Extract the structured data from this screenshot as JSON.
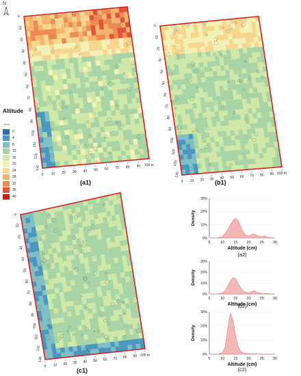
{
  "north_label": "N",
  "legend": {
    "title": "Altitude",
    "unit": "(cm)",
    "items": [
      {
        "value": "0",
        "color": "#2a6ea8"
      },
      {
        "value": "4",
        "color": "#4c97c0"
      },
      {
        "value": "8",
        "color": "#7fbfc4"
      },
      {
        "value": "12",
        "color": "#a9d5a6"
      },
      {
        "value": "16",
        "color": "#cfe7a7"
      },
      {
        "value": "20",
        "color": "#f2f2b6"
      },
      {
        "value": "24",
        "color": "#f7d78f"
      },
      {
        "value": "28",
        "color": "#f4b36e"
      },
      {
        "value": "32",
        "color": "#ec8b52"
      },
      {
        "value": "36",
        "color": "#e0553a"
      },
      {
        "value": "40",
        "color": "#c91d1d"
      }
    ]
  },
  "maps": [
    {
      "id": "a1",
      "label": "(a1)",
      "x_ticks": [
        "0",
        "10",
        "20",
        "30",
        "40",
        "50",
        "60",
        "70",
        "80",
        "90",
        "100 m"
      ],
      "y_ticks": [
        "0",
        "10",
        "20",
        "30",
        "40",
        "50",
        "60",
        "70",
        "80",
        "90",
        "100",
        "110",
        "120",
        "130"
      ],
      "x_unit": "m"
    },
    {
      "id": "b1",
      "label": "(b1)",
      "x_ticks": [
        "0",
        "10",
        "20",
        "30",
        "40",
        "50",
        "60",
        "70",
        "80",
        "90",
        "100 m"
      ],
      "y_ticks": [
        "0",
        "10",
        "20",
        "30",
        "40",
        "50",
        "60",
        "70",
        "80",
        "90",
        "100",
        "110",
        "120",
        "130"
      ],
      "x_unit": "m"
    },
    {
      "id": "c1",
      "label": "(c1)",
      "x_ticks": [
        "0",
        "10",
        "20",
        "30",
        "40",
        "50",
        "60",
        "70",
        "80",
        "90",
        "100 m"
      ],
      "y_ticks": [
        "0",
        "10",
        "20",
        "30",
        "40",
        "50",
        "60",
        "70",
        "80",
        "90",
        "100",
        "110",
        "120",
        "130"
      ],
      "x_unit": "m"
    }
  ],
  "chart_data": [
    {
      "type": "area",
      "id": "a2",
      "caption": "(a2)",
      "xlabel": "Altitude (cm)",
      "ylabel": "Density",
      "x": [
        5,
        8,
        10,
        12,
        13,
        14,
        15,
        16,
        17,
        18,
        19,
        20,
        21,
        22,
        23,
        24,
        25,
        26,
        27,
        28,
        30
      ],
      "values": [
        0,
        0,
        1,
        6,
        10,
        13,
        15,
        13,
        8,
        4,
        2,
        1.5,
        2.5,
        3,
        2,
        1.2,
        1,
        1.5,
        0.8,
        0.3,
        0
      ],
      "xlim": [
        5,
        30
      ],
      "ylim": [
        0,
        30
      ],
      "yticks": [
        "0%",
        "10%",
        "20%",
        "30%"
      ],
      "xticks": [
        "5",
        "10",
        "15",
        "20",
        "25",
        "30"
      ],
      "color": "#f4b6b6",
      "line_color": "#e88a8a"
    },
    {
      "type": "area",
      "id": "b2",
      "caption": "(b2)",
      "xlabel": "Altitude (cm)",
      "ylabel": "Density",
      "x": [
        5,
        8,
        10,
        11,
        12,
        13,
        14,
        15,
        16,
        17,
        18,
        19,
        20,
        21,
        22,
        23,
        24,
        25,
        27,
        30
      ],
      "values": [
        0,
        0,
        1,
        3,
        7,
        12,
        15,
        14,
        9,
        5,
        2.5,
        1.5,
        1,
        2,
        3,
        1.5,
        1,
        0.6,
        0.3,
        0
      ],
      "xlim": [
        5,
        30
      ],
      "ylim": [
        0,
        30
      ],
      "yticks": [
        "0%",
        "10%",
        "20%",
        "30%"
      ],
      "xticks": [
        "5",
        "10",
        "15",
        "20",
        "25",
        "30"
      ],
      "color": "#f4b6b6",
      "line_color": "#e88a8a"
    },
    {
      "type": "area",
      "id": "c2",
      "caption": "(c2)",
      "xlabel": "Altitude (cm)",
      "ylabel": "Density",
      "x": [
        5,
        8,
        10,
        11,
        12,
        13,
        14,
        15,
        16,
        17,
        18,
        20,
        22,
        25,
        30
      ],
      "values": [
        0,
        0,
        1,
        5,
        18,
        29,
        24,
        13,
        5,
        2,
        0.8,
        0.3,
        0.2,
        0.1,
        0
      ],
      "xlim": [
        5,
        30
      ],
      "ylim": [
        0,
        30
      ],
      "yticks": [
        "0%",
        "10%",
        "20%",
        "30%"
      ],
      "xticks": [
        "5",
        "10",
        "15",
        "20",
        "25",
        "30"
      ],
      "color": "#f4b6b6",
      "line_color": "#e88a8a"
    }
  ]
}
